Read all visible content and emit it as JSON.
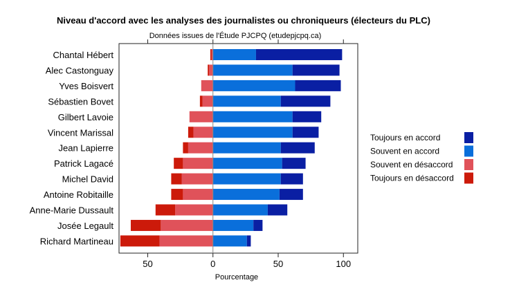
{
  "chart_data": {
    "type": "bar",
    "orientation": "horizontal",
    "stacked": "diverging",
    "title": "Niveau d'accord avec les analyses des journalistes ou chroniqueurs (électeurs du PLC)",
    "subtitle": "Données issues de l'Étude PJCPQ (etudepjcpq.ca)",
    "xlabel": "Pourcentage",
    "ylabel": "",
    "xlim": [
      -72,
      111
    ],
    "xticks": [
      -50,
      0,
      50,
      100
    ],
    "xtick_labels": [
      "50",
      "0",
      "50",
      "100"
    ],
    "grid": false,
    "legend_position": "right",
    "categories": [
      "Chantal Hébert",
      "Alec Castonguay",
      "Yves Boisvert",
      "Sébastien Bovet",
      "Gilbert Lavoie",
      "Vincent Marissal",
      "Jean Lapierre",
      "Patrick Lagacé",
      "Michel David",
      "Antoine Robitaille",
      "Anne-Marie Dussault",
      "Josée Legault",
      "Richard Martineau"
    ],
    "series": [
      {
        "name": "Toujours en accord",
        "color": "#0a1fa3",
        "values": [
          66,
          36,
          35,
          38,
          22,
          20,
          26,
          18,
          17,
          18,
          15,
          7,
          3
        ]
      },
      {
        "name": "Souvent en accord",
        "color": "#0a6fdb",
        "values": [
          33,
          61,
          63,
          52,
          61,
          61,
          52,
          53,
          52,
          51,
          42,
          31,
          26
        ]
      },
      {
        "name": "Souvent en désaccord",
        "color": "#e0525a",
        "values": [
          -1,
          -3,
          -9,
          -8,
          -18,
          -15,
          -19,
          -23,
          -24,
          -23,
          -29,
          -40,
          -41
        ]
      },
      {
        "name": "Toujours en désaccord",
        "color": "#cc1a0a",
        "values": [
          -1,
          -1,
          0,
          -2,
          0,
          -4,
          -4,
          -7,
          -8,
          -9,
          -15,
          -23,
          -30
        ]
      }
    ]
  }
}
